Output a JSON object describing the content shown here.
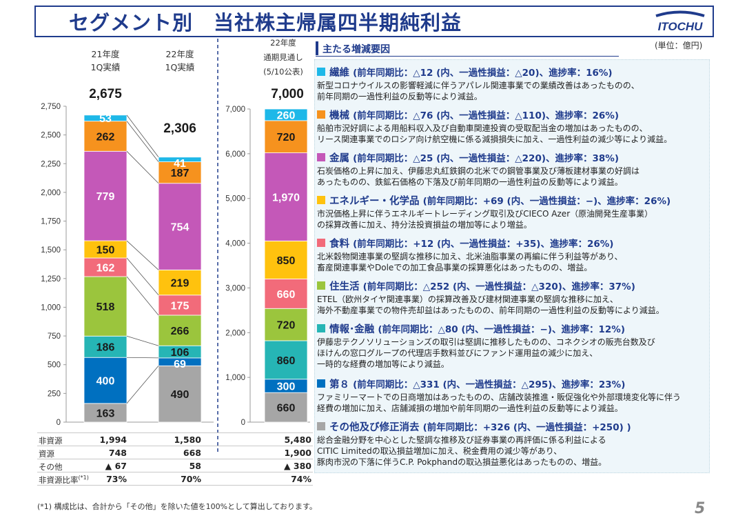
{
  "title": "セグメント別　当社株主帰属四半期純利益",
  "logo_text": "ITOCHU",
  "unit_label": "(単位：億円)",
  "panel_title": "主たる増減要因",
  "footnote": "(*1) 構成比は、合計から「その他」を除いた値を100%として算出しております。",
  "page_number": "5",
  "columns": [
    {
      "line1": "21年度",
      "line2": "1Q実績",
      "line3": "",
      "total": "2,675"
    },
    {
      "line1": "22年度",
      "line2": "1Q実績",
      "line3": "",
      "total": "2,306"
    },
    {
      "line1": "22年度",
      "line2": "通期見通し",
      "line3": "(5/10公表)",
      "total": "7,000"
    }
  ],
  "summary_rows": [
    {
      "label": "非資源",
      "values": [
        "1,994",
        "1,580",
        "5,480"
      ]
    },
    {
      "label": "資源",
      "values": [
        "748",
        "668",
        "1,900"
      ]
    },
    {
      "label": "その他",
      "values": [
        "▲ 67",
        "58",
        "▲ 380"
      ]
    },
    {
      "label": "非資源比率",
      "label_sup": "(*1)",
      "values": [
        "73%",
        "70%",
        "74%"
      ]
    }
  ],
  "segment_colors": [
    "#a6a6a6",
    "#0070c0",
    "#26b5b5",
    "#9bc53d",
    "#f26b7a",
    "#ffc20e",
    "#c458b8",
    "#f6921e",
    "#1eb8e8"
  ],
  "chart_data": {
    "type": "bar",
    "stacked": true,
    "categories": [
      "21年度1Q実績",
      "22年度1Q実績",
      "22年度通期見通し"
    ],
    "series_order_bottom_to_top": [
      "第8",
      "情報・金融",
      "住生活",
      "食料",
      "エネルギー・化学品",
      "金属",
      "機械",
      "繊維"
    ],
    "bars": [
      {
        "category": "21年度1Q実績",
        "axis": "left",
        "segments": [
          {
            "value": 163,
            "label": "163",
            "color": "#a6a6a6"
          },
          {
            "value": 400,
            "label": "400",
            "color": "#0070c0"
          },
          {
            "value": 186,
            "label": "186",
            "color": "#26b5b5"
          },
          {
            "value": 518,
            "label": "518",
            "color": "#9bc53d"
          },
          {
            "value": 162,
            "label": "162",
            "color": "#f26b7a"
          },
          {
            "value": 150,
            "label": "150",
            "color": "#ffc20e"
          },
          {
            "value": 779,
            "label": "779",
            "color": "#c458b8"
          },
          {
            "value": 262,
            "label": "262",
            "color": "#f6921e"
          },
          {
            "value": 53,
            "label": "53",
            "color": "#1eb8e8"
          }
        ]
      },
      {
        "category": "22年度1Q実績",
        "axis": "left",
        "segments": [
          {
            "value": 490,
            "label": "490",
            "color": "#a6a6a6"
          },
          {
            "value": 69,
            "label": "69",
            "color": "#0070c0"
          },
          {
            "value": 106,
            "label": "106",
            "color": "#26b5b5"
          },
          {
            "value": 266,
            "label": "266",
            "color": "#9bc53d"
          },
          {
            "value": 175,
            "label": "175",
            "color": "#f26b7a"
          },
          {
            "value": 219,
            "label": "219",
            "color": "#ffc20e"
          },
          {
            "value": 754,
            "label": "754",
            "color": "#c458b8"
          },
          {
            "value": 187,
            "label": "187",
            "color": "#f6921e"
          },
          {
            "value": 41,
            "label": "41",
            "color": "#1eb8e8"
          }
        ]
      },
      {
        "category": "22年度通期見通し",
        "axis": "right",
        "segments": [
          {
            "value": 660,
            "label": "660",
            "color": "#a6a6a6"
          },
          {
            "value": 300,
            "label": "300",
            "color": "#0070c0"
          },
          {
            "value": 860,
            "label": "860",
            "color": "#26b5b5"
          },
          {
            "value": 720,
            "label": "720",
            "color": "#9bc53d"
          },
          {
            "value": 660,
            "label": "660",
            "color": "#f26b7a"
          },
          {
            "value": 850,
            "label": "850",
            "color": "#ffc20e"
          },
          {
            "value": 1970,
            "label": "1,970",
            "color": "#c458b8"
          },
          {
            "value": 720,
            "label": "720",
            "color": "#f6921e"
          },
          {
            "value": 260,
            "label": "260",
            "color": "#1eb8e8"
          }
        ]
      }
    ],
    "left_axis": {
      "ylim": [
        0,
        2750
      ],
      "ticks": [
        "0",
        "250",
        "500",
        "750",
        "1,000",
        "1,250",
        "1,500",
        "1,750",
        "2,000",
        "2,250",
        "2,500",
        "2,750"
      ]
    },
    "right_axis": {
      "ylim": [
        0,
        7000
      ],
      "ticks": [
        "0",
        "1,000",
        "2,000",
        "3,000",
        "4,000",
        "5,000",
        "6,000",
        "7,000"
      ]
    }
  },
  "segments": [
    {
      "color": "#1eb8e8",
      "name": "繊維",
      "detail": "(前年同期比：△12 (内、一過性損益：△20)、進捗率：16%)",
      "lines": [
        "新型コロナウイルスの影響軽減に伴うアパレル関連事業での業績改善はあったものの、",
        "前年同期の一過性利益の反動等により減益。"
      ]
    },
    {
      "color": "#f6921e",
      "name": "機械",
      "detail": "(前年同期比：△76 (内、一過性損益：△110)、進捗率：26%)",
      "lines": [
        "船舶市況好調による用船料収入及び自動車関連投資の受取配当金の増加はあったものの、",
        "リース関連事業でのロシア向け航空機に係る減損損失に加え、一過性利益の減少等により減益。"
      ]
    },
    {
      "color": "#c458b8",
      "name": "金属",
      "detail": "(前年同期比：△25 (内、一過性損益：△220)、進捗率：38%)",
      "lines": [
        "石炭価格の上昇に加え、伊藤忠丸紅鉄鋼の北米での鋼管事業及び薄板建材事業の好調は",
        "あったものの、鉄鉱石価格の下落及び前年同期の一過性利益の反動等により減益。"
      ]
    },
    {
      "color": "#ffc20e",
      "name": "エネルギー・化学品",
      "detail": "(前年同期比：+69 (内、一過性損益：−)、進捗率：26%)",
      "lines": [
        "市況価格上昇に伴うエネルギートレーディング取引及びCIECO Azer（原油開発生産事業）",
        "の採算改善に加え、持分法投資損益の増加等により増益。"
      ]
    },
    {
      "color": "#f26b7a",
      "name": "食料",
      "detail": "(前年同期比：+12 (内、一過性損益：+35)、進捗率：26%)",
      "lines": [
        "北米穀物関連事業の堅調な推移に加え、北米油脂事業の再編に伴う利益等があり、",
        "畜産関連事業やDoleでの加工食品事業の採算悪化はあったものの、増益。"
      ]
    },
    {
      "color": "#9bc53d",
      "name": "住生活",
      "detail": "(前年同期比：△252 (内、一過性損益：△320)、進捗率：37%)",
      "lines": [
        "ETEL（欧州タイヤ関連事業）の採算改善及び建材関連事業の堅調な推移に加え、",
        "海外不動産事業での物件売却益はあったものの、前年同期の一過性利益の反動等により減益。"
      ]
    },
    {
      "color": "#26b5b5",
      "name": "情報･金融",
      "detail": "(前年同期比：△80 (内、一過性損益：−)、進捗率：12%)",
      "lines": [
        "伊藤忠テクノソリューションズの取引は堅調に推移したものの、コネクシオの販売台数及び",
        "ほけんの窓口グループの代理店手数料並びにファンド運用益の減少に加え、",
        "一時的な経費の増加等により減益。"
      ]
    },
    {
      "color": "#0070c0",
      "name": "第８",
      "detail": "(前年同期比：△331 (内、一過性損益：△295)、進捗率：23%)",
      "lines": [
        "ファミリーマートでの日商増加はあったものの、店舗改装推進・販促強化や外部環境変化等に伴う",
        "経費の増加に加え、店舗減損の増加や前年同期の一過性利益の反動等により減益。"
      ]
    },
    {
      "color": "#a6a6a6",
      "name": "その他及び修正消去",
      "detail": "(前年同期比：+326 (内、一過性損益：+250) )",
      "lines": [
        "総合金融分野を中心とした堅調な推移及び証券事業の再評価に係る利益による",
        "CITIC Limitedの取込損益増加に加え、税金費用の減少等があり、",
        "豚肉市況の下落に伴うC.P. Pokphandの取込損益悪化はあったものの、増益。"
      ]
    }
  ]
}
